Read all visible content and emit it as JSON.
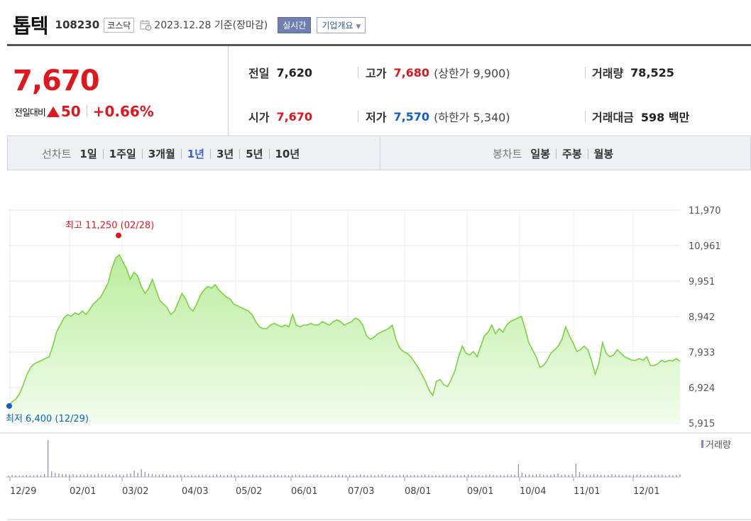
{
  "header": {
    "name": "톱텍",
    "code": "108230",
    "market": "코스닥",
    "date": "2023.12.28 기준(장마감)",
    "realtime_label": "실시간",
    "company_label": "기업개요"
  },
  "quote": {
    "price": "7,670",
    "change_label": "전일대비",
    "change_amount": "50",
    "change_pct": "+0.66%",
    "prev_close_label": "전일",
    "prev_close": "7,620",
    "high_label": "고가",
    "high": "7,680",
    "upper_limit": "(상한가 9,900)",
    "volume_label": "거래량",
    "volume": "78,525",
    "open_label": "시가",
    "open": "7,670",
    "low_label": "저가",
    "low": "7,570",
    "lower_limit": "(하한가 5,340)",
    "value_label": "거래대금",
    "value": "598 백만"
  },
  "periods": {
    "line_label": "선차트",
    "line_items": [
      "1일",
      "1주일",
      "3개월",
      "1년",
      "3년",
      "5년",
      "10년"
    ],
    "line_selected": "1년",
    "candle_label": "봉차트",
    "candle_items": [
      "일봉",
      "주봉",
      "월봉"
    ]
  },
  "chart_data": {
    "type": "area",
    "y_ticks": [
      "11,970",
      "10,961",
      "9,951",
      "8,942",
      "7,933",
      "6,924",
      "5,915"
    ],
    "ylim": [
      5915,
      11970
    ],
    "x_ticks": [
      "12/29",
      "02/01",
      "03/02",
      "04/03",
      "05/02",
      "06/01",
      "07/03",
      "08/01",
      "09/01",
      "10/04",
      "11/01",
      "12/01"
    ],
    "max_label": "최고 11,250 (02/28)",
    "min_label": "최저 6,400 (12/29)",
    "volume_legend": "거래량",
    "series": [
      {
        "values": [
          6400,
          6520,
          6600,
          6750,
          7000,
          7300,
          7500,
          7600,
          7650,
          7700,
          7750,
          7800,
          8100,
          8500,
          8700,
          8900,
          9000,
          8950,
          9050,
          9000,
          9100,
          9000,
          9150,
          9300,
          9400,
          9500,
          9700,
          9900,
          10300,
          10600,
          10700,
          10500,
          10300,
          10000,
          10200,
          10100,
          9800,
          9600,
          9750,
          10000,
          9700,
          9400,
          9300,
          9200,
          9000,
          9100,
          9350,
          9600,
          9450,
          9200,
          9100,
          9300,
          9550,
          9700,
          9800,
          9750,
          9850,
          9700,
          9600,
          9500,
          9450,
          9300,
          9250,
          9200,
          9150,
          9100,
          9000,
          8800,
          8650,
          8600,
          8600,
          8700,
          8750,
          8700,
          8650,
          8700,
          8650,
          9000,
          8700,
          8650,
          8700,
          8700,
          8750,
          8700,
          8700,
          8800,
          8750,
          8700,
          8800,
          8850,
          8800,
          8700,
          8750,
          8800,
          8900,
          8850,
          8700,
          8400,
          8300,
          8350,
          8450,
          8500,
          8550,
          8600,
          8700,
          8300,
          8050,
          7950,
          7900,
          7800,
          7650,
          7500,
          7300,
          7100,
          6850,
          6700,
          7100,
          7150,
          7000,
          6950,
          7150,
          7400,
          7800,
          8100,
          7900,
          7850,
          7950,
          7800,
          8100,
          8400,
          8500,
          8700,
          8450,
          8600,
          8500,
          8700,
          8800,
          8850,
          8900,
          8950,
          8600,
          8200,
          8000,
          7800,
          7500,
          7550,
          7700,
          7900,
          8000,
          8100,
          8300,
          8650,
          8400,
          8200,
          7950,
          8000,
          8100,
          8000,
          7700,
          7300,
          7600,
          8200,
          7900,
          7800,
          7850,
          8000,
          7900,
          7800,
          7750,
          7700,
          7700,
          7750,
          7700,
          7800,
          7550,
          7550,
          7600,
          7700,
          7650,
          7700,
          7680,
          7750,
          7670
        ]
      }
    ],
    "volume_values": [
      20,
      30,
      25,
      20,
      25,
      30,
      20,
      25,
      30,
      25,
      40,
      520,
      80,
      60,
      50,
      40,
      45,
      35,
      40,
      30,
      35,
      30,
      40,
      35,
      30,
      45,
      35,
      40,
      35,
      30,
      40,
      35,
      30,
      45,
      50,
      90,
      60,
      110,
      70,
      50,
      40,
      35,
      30,
      40,
      35,
      30,
      25,
      30,
      35,
      30,
      25,
      30,
      25,
      30,
      35,
      30,
      25,
      30,
      35,
      30,
      25,
      30,
      35,
      30,
      25,
      30,
      25,
      30,
      35,
      30,
      25,
      30,
      25,
      30,
      35,
      30,
      25,
      30,
      25,
      30,
      35,
      30,
      25,
      30,
      25,
      30,
      35,
      30,
      25,
      30,
      25,
      30,
      35,
      30,
      25,
      30,
      25,
      30,
      35,
      30,
      25,
      30,
      25,
      30,
      35,
      30,
      25,
      30,
      25,
      30,
      35,
      30,
      25,
      30,
      25,
      30,
      35,
      30,
      25,
      30,
      25,
      30,
      35,
      30,
      25,
      30,
      25,
      30,
      35,
      30,
      25,
      30,
      25,
      30,
      35,
      30,
      25,
      30,
      25,
      30,
      35,
      30,
      180,
      60,
      40,
      35,
      30,
      40,
      45,
      30,
      35,
      30,
      40,
      50,
      30,
      35,
      30,
      40,
      190,
      70,
      40,
      35,
      30,
      40,
      35,
      30,
      25,
      30,
      40,
      35,
      30,
      25,
      30,
      25,
      30,
      35,
      30,
      25,
      30,
      25,
      30,
      35,
      30,
      25,
      30,
      25,
      30,
      35
    ]
  }
}
